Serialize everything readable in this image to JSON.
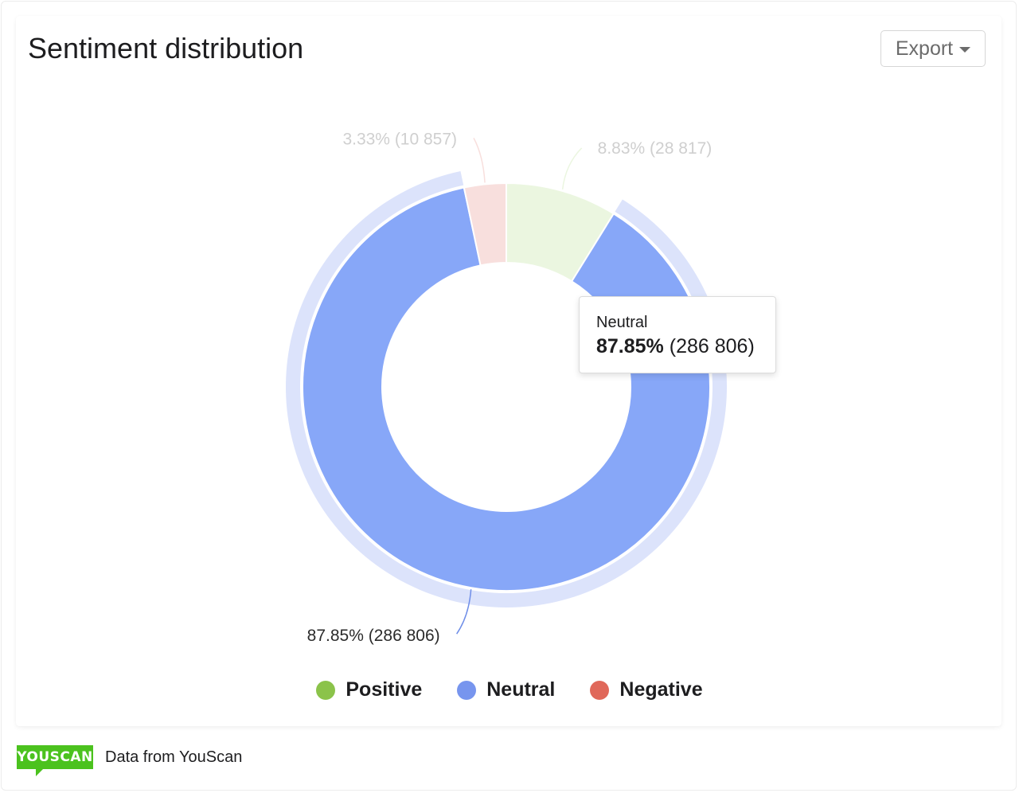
{
  "header": {
    "title": "Sentiment distribution",
    "export_label": "Export"
  },
  "chart_data": {
    "type": "pie",
    "title": "Sentiment distribution",
    "donut": true,
    "slices": [
      {
        "name": "Positive",
        "percent": 8.83,
        "count": 28817,
        "value_label": "8.83% (28 817)",
        "color": "#8bc34a",
        "fill": "#ebf6e0"
      },
      {
        "name": "Neutral",
        "percent": 87.85,
        "count": 286806,
        "value_label": "87.85% (286 806)",
        "color": "#6f8ee8",
        "fill": "#87a7f8"
      },
      {
        "name": "Negative",
        "percent": 3.33,
        "count": 10857,
        "value_label": "3.33% (10 857)",
        "color": "#e05a47",
        "fill": "#f8dfdd"
      }
    ],
    "highlighted": "Neutral",
    "legend_position": "bottom"
  },
  "tooltip": {
    "name": "Neutral",
    "percent": "87.85%",
    "count": "(286 806)"
  },
  "legend": [
    {
      "label": "Positive",
      "color": "#8bc34a"
    },
    {
      "label": "Neutral",
      "color": "#7795ee"
    },
    {
      "label": "Negative",
      "color": "#e0685a"
    }
  ],
  "footer": {
    "logo_text": "YOUSCAN",
    "source_text": "Data from YouScan"
  }
}
